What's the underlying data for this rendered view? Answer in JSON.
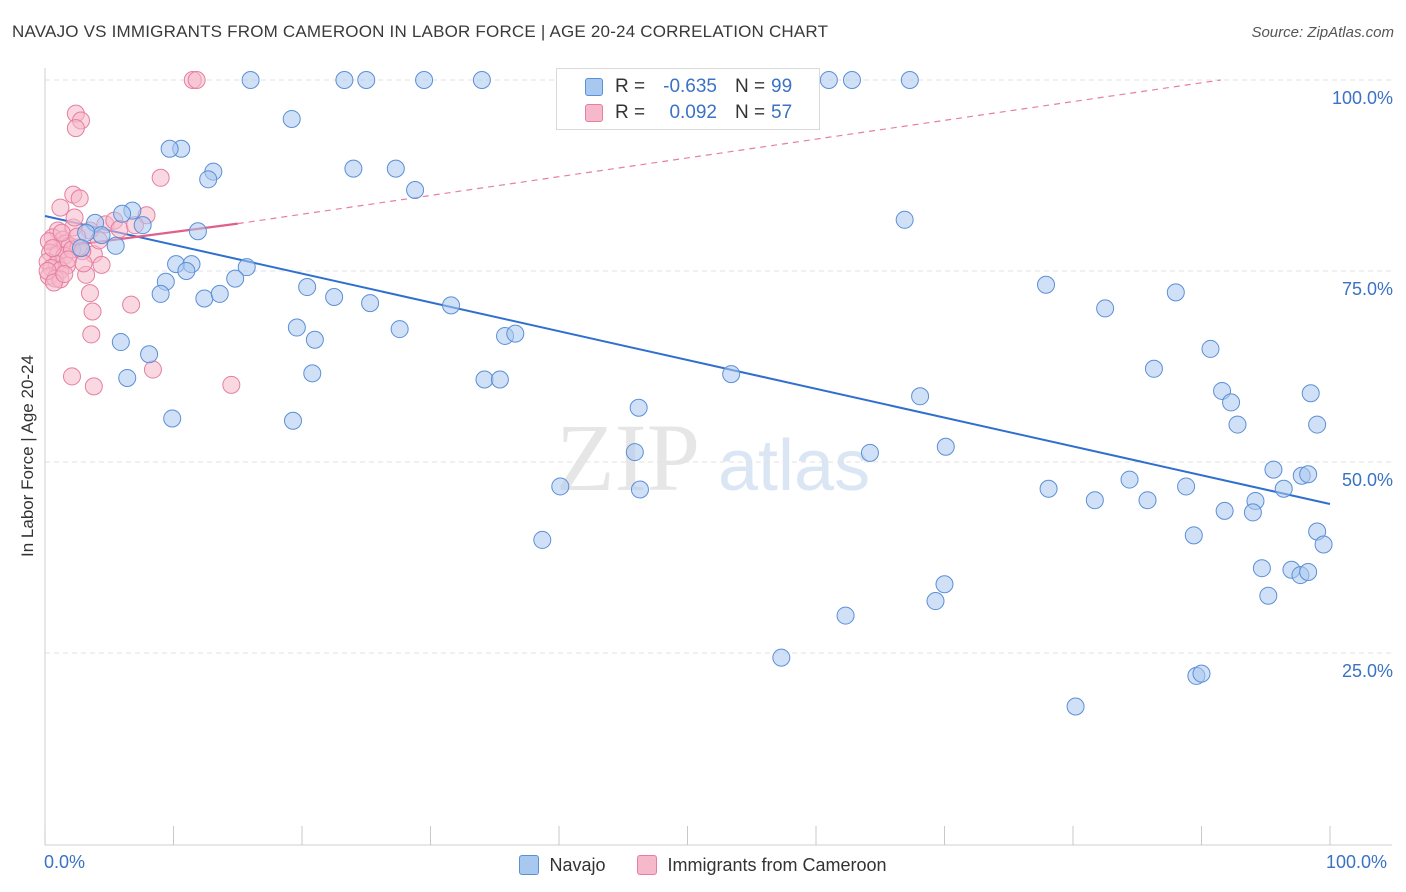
{
  "title": "NAVAJO VS IMMIGRANTS FROM CAMEROON IN LABOR FORCE | AGE 20-24 CORRELATION CHART",
  "source": "Source: ZipAtlas.com",
  "watermark": {
    "zip": "ZIP",
    "atlas": "atlas"
  },
  "colors": {
    "navajo_fill": "#a9c8f0",
    "navajo_stroke": "#5b8fd6",
    "navajo_line": "#2f6fcf",
    "cameroon_fill": "#f6b8cb",
    "cameroon_stroke": "#e57fa0",
    "cameroon_line": "#e0608a",
    "tick_label": "#3a72c4",
    "grid": "#e2e2e2"
  },
  "stats": [
    {
      "r_label": "R =",
      "r_value": "-0.635",
      "n_label": "N =",
      "n_value": "99"
    },
    {
      "r_label": "R =",
      "r_value": "0.092",
      "n_label": "N =",
      "n_value": "57"
    }
  ],
  "legend": [
    "Navajo",
    "Immigrants from Cameroon"
  ],
  "chart_data": {
    "type": "scatter",
    "title": "NAVAJO VS IMMIGRANTS FROM CAMEROON IN LABOR FORCE | AGE 20-24 CORRELATION CHART",
    "xlabel": "",
    "ylabel": "In Labor Force | Age 20-24",
    "xlim": [
      0,
      100
    ],
    "ylim": [
      0,
      105
    ],
    "x_tick_labels": [
      "0.0%",
      "100.0%"
    ],
    "y_ticks": [
      25,
      50,
      75,
      100
    ],
    "y_tick_labels": [
      "25.0%",
      "50.0%",
      "75.0%",
      "100.0%"
    ],
    "grid": true,
    "legend_position": "bottom-center",
    "series": [
      {
        "name": "Navajo",
        "r": -0.635,
        "n": 99,
        "trend": {
          "x": [
            0,
            100
          ],
          "y": [
            82.2,
            44.5
          ]
        },
        "points": [
          [
            16.0,
            100
          ],
          [
            23.3,
            100
          ],
          [
            25.0,
            100
          ],
          [
            29.5,
            100
          ],
          [
            34.0,
            100
          ],
          [
            55.5,
            100
          ],
          [
            61.0,
            100
          ],
          [
            62.8,
            100
          ],
          [
            67.3,
            100
          ],
          [
            19.2,
            94.9
          ],
          [
            10.6,
            91.0
          ],
          [
            24.0,
            88.4
          ],
          [
            27.3,
            88.4
          ],
          [
            13.1,
            88.0
          ],
          [
            12.7,
            87.0
          ],
          [
            28.8,
            85.6
          ],
          [
            6.8,
            82.9
          ],
          [
            3.9,
            81.3
          ],
          [
            7.6,
            81.0
          ],
          [
            11.9,
            80.2
          ],
          [
            4.4,
            79.7
          ],
          [
            5.5,
            78.3
          ],
          [
            10.2,
            75.9
          ],
          [
            11.4,
            75.9
          ],
          [
            15.7,
            75.5
          ],
          [
            9.4,
            73.6
          ],
          [
            20.4,
            72.9
          ],
          [
            9.0,
            72.0
          ],
          [
            22.5,
            71.6
          ],
          [
            12.4,
            71.4
          ],
          [
            25.3,
            70.8
          ],
          [
            31.6,
            70.5
          ],
          [
            19.6,
            67.6
          ],
          [
            27.6,
            67.4
          ],
          [
            35.8,
            66.5
          ],
          [
            36.6,
            66.8
          ],
          [
            5.9,
            65.7
          ],
          [
            8.1,
            64.1
          ],
          [
            20.8,
            61.6
          ],
          [
            6.4,
            61.0
          ],
          [
            34.2,
            60.8
          ],
          [
            35.4,
            60.8
          ],
          [
            53.4,
            61.5
          ],
          [
            13.6,
            72.0
          ],
          [
            9.9,
            55.7
          ],
          [
            19.3,
            55.4
          ],
          [
            46.2,
            57.1
          ],
          [
            45.9,
            51.3
          ],
          [
            40.1,
            46.8
          ],
          [
            46.3,
            46.4
          ],
          [
            38.7,
            39.8
          ],
          [
            64.2,
            51.2
          ],
          [
            68.1,
            58.6
          ],
          [
            70.1,
            52.0
          ],
          [
            57.3,
            24.4
          ],
          [
            62.3,
            29.9
          ],
          [
            69.3,
            31.8
          ],
          [
            70.0,
            34.0
          ],
          [
            66.9,
            81.7
          ],
          [
            77.9,
            73.2
          ],
          [
            82.5,
            70.1
          ],
          [
            88.0,
            72.2
          ],
          [
            86.3,
            62.2
          ],
          [
            90.7,
            64.8
          ],
          [
            91.6,
            59.3
          ],
          [
            92.3,
            57.8
          ],
          [
            92.8,
            54.9
          ],
          [
            98.5,
            59.0
          ],
          [
            99.0,
            54.9
          ],
          [
            78.1,
            46.5
          ],
          [
            81.7,
            45.0
          ],
          [
            84.4,
            47.7
          ],
          [
            85.8,
            45.0
          ],
          [
            88.8,
            46.8
          ],
          [
            89.4,
            40.4
          ],
          [
            91.8,
            43.6
          ],
          [
            94.2,
            44.9
          ],
          [
            94.0,
            43.4
          ],
          [
            95.6,
            49.0
          ],
          [
            96.4,
            46.5
          ],
          [
            97.8,
            48.2
          ],
          [
            98.3,
            48.4
          ],
          [
            99.0,
            40.9
          ],
          [
            99.5,
            39.2
          ],
          [
            94.7,
            36.1
          ],
          [
            95.2,
            32.5
          ],
          [
            97.0,
            35.9
          ],
          [
            97.7,
            35.2
          ],
          [
            98.3,
            35.6
          ],
          [
            89.6,
            22.0
          ],
          [
            90.0,
            22.3
          ],
          [
            80.2,
            18.0
          ],
          [
            3.2,
            80.0
          ],
          [
            2.8,
            78.0
          ],
          [
            9.7,
            91.0
          ],
          [
            6.0,
            82.5
          ],
          [
            14.8,
            74.0
          ],
          [
            21.0,
            66.0
          ],
          [
            11.0,
            75.0
          ]
        ]
      },
      {
        "name": "Immigrants from Cameroon",
        "r": 0.092,
        "n": 57,
        "trend": {
          "x": [
            0,
            15
          ],
          "y": [
            77.9,
            81.2
          ],
          "dashed_to": {
            "x": 91.5,
            "y": 100
          }
        },
        "points": [
          [
            11.5,
            100
          ],
          [
            11.8,
            100
          ],
          [
            2.4,
            95.6
          ],
          [
            2.8,
            94.7
          ],
          [
            2.4,
            93.7
          ],
          [
            9.0,
            87.2
          ],
          [
            2.2,
            85.0
          ],
          [
            2.7,
            84.5
          ],
          [
            1.2,
            83.3
          ],
          [
            7.9,
            82.3
          ],
          [
            3.5,
            80.3
          ],
          [
            4.7,
            81.1
          ],
          [
            5.4,
            81.6
          ],
          [
            1.0,
            80.3
          ],
          [
            2.2,
            80.7
          ],
          [
            0.6,
            79.4
          ],
          [
            1.4,
            79.1
          ],
          [
            0.3,
            78.9
          ],
          [
            1.6,
            78.6
          ],
          [
            1.9,
            78.3
          ],
          [
            2.6,
            78.1
          ],
          [
            0.4,
            77.4
          ],
          [
            1.0,
            77.2
          ],
          [
            1.5,
            77.0
          ],
          [
            2.1,
            77.8
          ],
          [
            3.8,
            77.2
          ],
          [
            0.2,
            76.2
          ],
          [
            0.9,
            75.9
          ],
          [
            1.7,
            75.7
          ],
          [
            0.5,
            75.4
          ],
          [
            1.2,
            75.1
          ],
          [
            4.4,
            75.8
          ],
          [
            0.3,
            74.3
          ],
          [
            0.8,
            74.0
          ],
          [
            1.2,
            73.9
          ],
          [
            3.2,
            74.5
          ],
          [
            3.5,
            72.1
          ],
          [
            6.7,
            70.6
          ],
          [
            3.7,
            69.7
          ],
          [
            3.6,
            66.7
          ],
          [
            2.1,
            61.2
          ],
          [
            8.4,
            62.1
          ],
          [
            3.8,
            59.9
          ],
          [
            14.5,
            60.1
          ],
          [
            0.6,
            78.0
          ],
          [
            1.3,
            80.0
          ],
          [
            2.5,
            79.5
          ],
          [
            0.2,
            75.0
          ],
          [
            1.8,
            76.5
          ],
          [
            2.9,
            77.6
          ],
          [
            4.2,
            79.0
          ],
          [
            5.8,
            80.5
          ],
          [
            0.7,
            73.5
          ],
          [
            1.5,
            74.6
          ],
          [
            2.3,
            82.0
          ],
          [
            7.0,
            81.0
          ],
          [
            3.0,
            76.0
          ]
        ]
      }
    ]
  }
}
